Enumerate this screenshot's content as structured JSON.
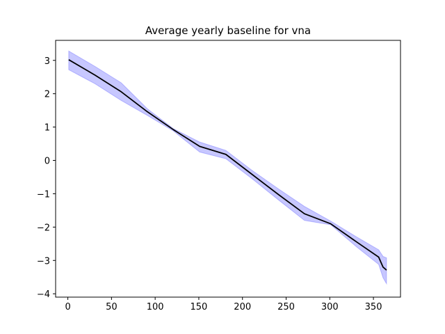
{
  "chart_data": {
    "type": "line",
    "title": "Average yearly baseline for vna",
    "xlabel": "",
    "ylabel": "",
    "xlim": [
      -14,
      381
    ],
    "ylim": [
      -4.1,
      3.6
    ],
    "xticks": [
      0,
      50,
      100,
      150,
      200,
      250,
      300,
      350
    ],
    "yticks": [
      -4,
      -3,
      -2,
      -1,
      0,
      1,
      2,
      3
    ],
    "xtick_labels": [
      "0",
      "50",
      "100",
      "150",
      "200",
      "250",
      "300",
      "350"
    ],
    "ytick_labels": [
      "−4",
      "−3",
      "−2",
      "−1",
      "0",
      "1",
      "2",
      "3"
    ],
    "grid": false,
    "series": [
      {
        "line_color": "#000000",
        "band_color": "#0000ff",
        "x": [
          1,
          31,
          61,
          91,
          121,
          151,
          181,
          211,
          241,
          271,
          301,
          331,
          356,
          361,
          365
        ],
        "y": [
          3.02,
          2.56,
          2.06,
          1.46,
          0.92,
          0.42,
          0.18,
          -0.42,
          -1.02,
          -1.6,
          -1.9,
          -2.45,
          -2.9,
          -3.2,
          -3.29
        ],
        "upper": [
          3.28,
          2.82,
          2.33,
          1.55,
          0.95,
          0.55,
          0.3,
          -0.3,
          -0.85,
          -1.38,
          -1.82,
          -2.3,
          -2.68,
          -2.88,
          -2.92
        ],
        "lower": [
          2.72,
          2.3,
          1.8,
          1.35,
          0.88,
          0.25,
          0.05,
          -0.55,
          -1.18,
          -1.8,
          -1.93,
          -2.6,
          -3.12,
          -3.52,
          -3.7
        ]
      }
    ]
  }
}
